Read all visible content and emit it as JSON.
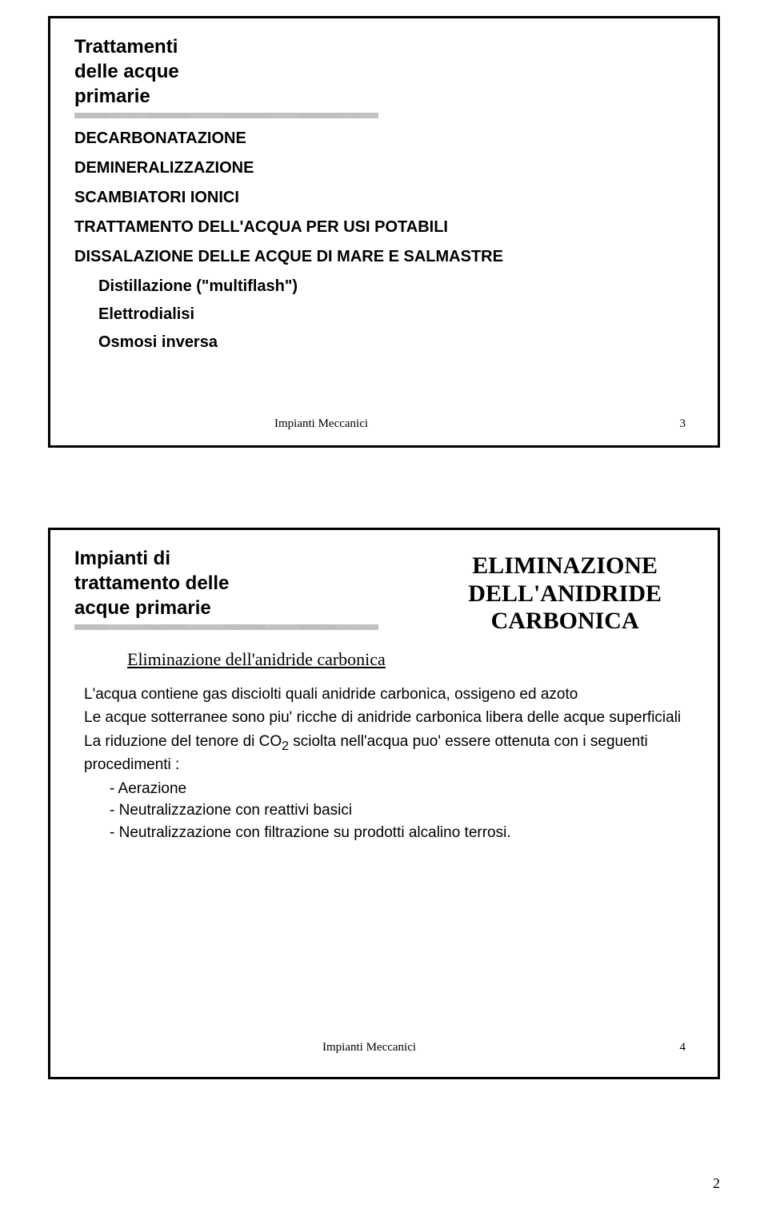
{
  "slide1": {
    "title_line1": "Trattamenti",
    "title_line2": "delle acque",
    "title_line3": "primarie",
    "items": [
      "DECARBONATAZIONE",
      "DEMINERALIZZAZIONE",
      "SCAMBIATORI IONICI",
      "TRATTAMENTO DELL'ACQUA PER USI POTABILI",
      "DISSALAZIONE DELLE ACQUE DI MARE E SALMASTRE"
    ],
    "subitems": [
      "Distillazione (\"multiflash\")",
      "Elettrodialisi",
      "Osmosi inversa"
    ],
    "footer": "Impianti Meccanici",
    "footer_num": "3"
  },
  "slide2": {
    "title_line1": "Impianti di",
    "title_line2": "trattamento delle",
    "title_line3": "acque primarie",
    "right_title_line1": "ELIMINAZIONE",
    "right_title_line2": "DELL'ANIDRIDE",
    "right_title_line3": "CARBONICA",
    "subsection": "Eliminazione dell'anidride carbonica",
    "para1": "L'acqua contiene gas disciolti quali anidride carbonica, ossigeno ed azoto",
    "para2": "Le acque sotterranee sono piu' ricche di anidride carbonica libera delle acque superficiali",
    "para3_pre": "La riduzione del tenore di CO",
    "para3_sub": "2",
    "para3_post": " sciolta nell'acqua puo' essere ottenuta con i seguenti procedimenti :",
    "bullets": [
      "- Aerazione",
      "- Neutralizzazione con reattivi basici",
      "- Neutralizzazione con filtrazione su prodotti alcalino terrosi."
    ],
    "footer": "Impianti Meccanici",
    "footer_num": "4"
  },
  "page_number": "2"
}
